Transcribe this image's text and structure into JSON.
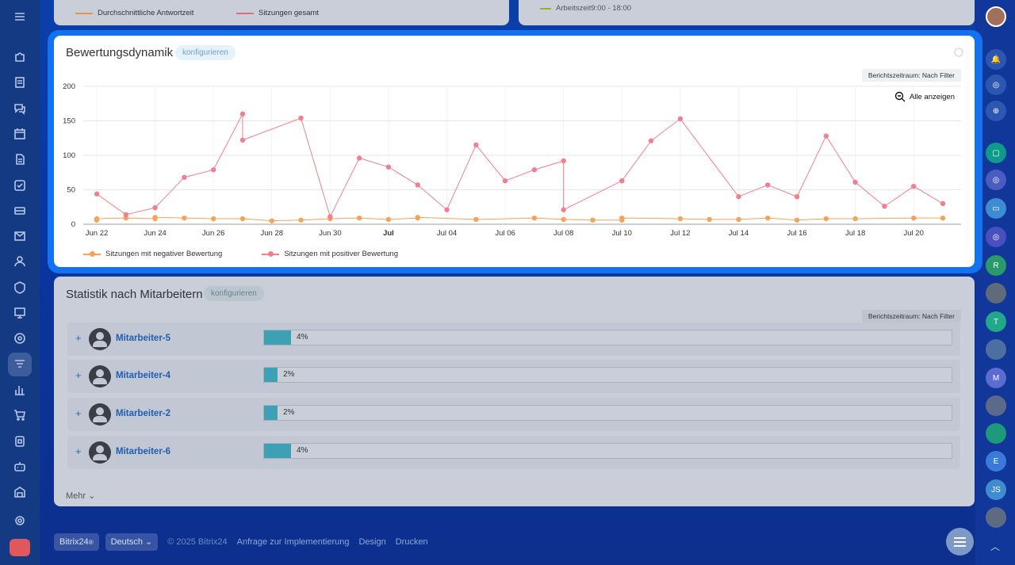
{
  "top_cards": {
    "left_legend": [
      {
        "label": "Durchschnittliche Antwortzeit",
        "color": "#e8924b"
      },
      {
        "label": "Sitzungen gesamt",
        "color": "#e86a7a"
      }
    ],
    "right_legend": {
      "label": "Arbeitszeit9:00 - 18:00",
      "color": "#8bb52a"
    }
  },
  "widget": {
    "title": "Bewertungsdynamik",
    "configure_label": "konfigurieren",
    "period_label": "Berichtszeitraum: Nach Filter",
    "show_all_label": "Alle anzeigen"
  },
  "chart_data": {
    "type": "line",
    "title": "Bewertungsdynamik",
    "xlabel": "",
    "ylabel": "",
    "ylim": [
      0,
      200
    ],
    "y_ticks": [
      0,
      50,
      100,
      150,
      200
    ],
    "x_ticks": [
      "Jun 22",
      "Jun 24",
      "Jun 26",
      "Jun 28",
      "Jun 30",
      "Jul",
      "Jul 04",
      "Jul 06",
      "Jul 08",
      "Jul 10",
      "Jul 12",
      "Jul 14",
      "Jul 16",
      "Jul 18",
      "Jul 20"
    ],
    "x_tick_days": [
      0,
      2,
      4,
      6,
      8,
      10,
      12,
      14,
      16,
      18,
      20,
      22,
      24,
      26,
      28
    ],
    "grid": true,
    "legend_position": "bottom-left",
    "series": [
      {
        "name": "Sitzungen mit negativer Bewertung",
        "color": "#f5a35a",
        "points": [
          [
            0.0,
            6
          ],
          [
            0.0,
            8
          ],
          [
            1.0,
            9
          ],
          [
            2.0,
            8
          ],
          [
            2.0,
            10
          ],
          [
            3.0,
            9
          ],
          [
            4.0,
            8
          ],
          [
            5.0,
            8
          ],
          [
            6.0,
            5
          ],
          [
            7.0,
            6
          ],
          [
            8.0,
            8
          ],
          [
            9.0,
            9
          ],
          [
            10.0,
            7
          ],
          [
            11.0,
            9
          ],
          [
            11.0,
            10
          ],
          [
            13.0,
            7
          ],
          [
            15.0,
            9
          ],
          [
            16.0,
            7
          ],
          [
            17.0,
            6
          ],
          [
            18.0,
            6
          ],
          [
            18.0,
            9
          ],
          [
            20.0,
            8
          ],
          [
            21.0,
            7
          ],
          [
            22.0,
            7
          ],
          [
            23.0,
            9
          ],
          [
            24.0,
            6
          ],
          [
            25.0,
            8
          ],
          [
            26.0,
            8
          ],
          [
            28.0,
            9
          ],
          [
            29.0,
            9
          ]
        ]
      },
      {
        "name": "Sitzungen mit positiver Bewertung",
        "color": "#f0808e",
        "points": [
          [
            0.0,
            44
          ],
          [
            1.0,
            14
          ],
          [
            2.0,
            24
          ],
          [
            3.0,
            68
          ],
          [
            4.0,
            79
          ],
          [
            5.0,
            160
          ],
          [
            5.0,
            122
          ],
          [
            7.0,
            154
          ],
          [
            8.0,
            11
          ],
          [
            9.0,
            96
          ],
          [
            10.0,
            83
          ],
          [
            11.0,
            57
          ],
          [
            12.0,
            21
          ],
          [
            13.0,
            115
          ],
          [
            14.0,
            63
          ],
          [
            15.0,
            79
          ],
          [
            16.0,
            92
          ],
          [
            16.0,
            21
          ],
          [
            18.0,
            63
          ],
          [
            19.0,
            121
          ],
          [
            20.0,
            153
          ],
          [
            22.0,
            40
          ],
          [
            23.0,
            57
          ],
          [
            24.0,
            40
          ],
          [
            25.0,
            128
          ],
          [
            26.0,
            61
          ],
          [
            27.0,
            26
          ],
          [
            28.0,
            55
          ],
          [
            29.0,
            30
          ]
        ]
      }
    ]
  },
  "stats": {
    "title": "Statistik nach Mitarbeitern",
    "configure_label": "konfigurieren",
    "period_label": "Berichtszeitraum: Nach Filter",
    "rows": [
      {
        "name": "Mitarbeiter-5",
        "percent_label": "4%",
        "percent": 4
      },
      {
        "name": "Mitarbeiter-4",
        "percent_label": "2%",
        "percent": 2
      },
      {
        "name": "Mitarbeiter-2",
        "percent_label": "2%",
        "percent": 2
      },
      {
        "name": "Mitarbeiter-6",
        "percent_label": "4%",
        "percent": 4
      }
    ],
    "more_label": "Mehr"
  },
  "footer": {
    "brand": "Bitrix24",
    "language": "Deutsch",
    "copyright": "© 2025 Bitrix24",
    "links": [
      "Anfrage zur Implementierung",
      "Design",
      "Drucken"
    ]
  },
  "right_bar": {
    "letters": [
      "R",
      "T",
      "M",
      "E",
      "JS"
    ]
  },
  "icons": {
    "left": [
      "menu-icon",
      "puzzle-icon",
      "feed-icon",
      "chat-icon",
      "calendar-icon",
      "document-icon",
      "tasks-icon",
      "drive-icon",
      "mail-icon",
      "contacts-icon",
      "shield-icon",
      "board-icon",
      "target-icon",
      "funnel-icon",
      "analytics-icon",
      "cart-icon",
      "store-icon",
      "robot-icon",
      "warehouse-icon",
      "settings-icon",
      "rocket-icon"
    ]
  }
}
